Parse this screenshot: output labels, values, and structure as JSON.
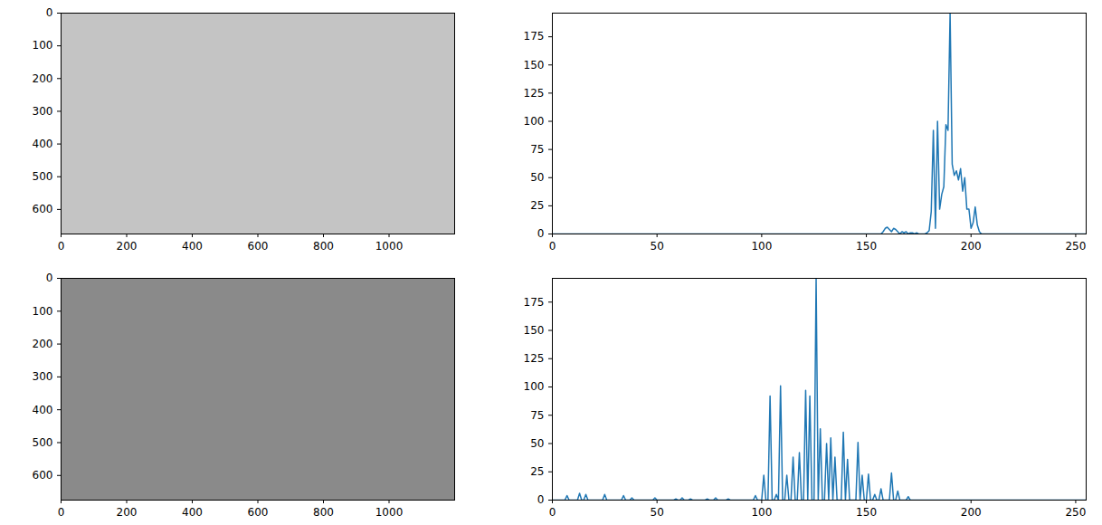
{
  "chart_data": [
    {
      "type": "image",
      "color": "#c4c4c4",
      "xlim": [
        0,
        1200
      ],
      "ylim": [
        0,
        675
      ],
      "xticks": [
        0,
        200,
        400,
        600,
        800,
        1000
      ],
      "yticks": [
        0,
        100,
        200,
        300,
        400,
        500,
        600
      ]
    },
    {
      "type": "line",
      "color": "#1f77b4",
      "x": [
        0,
        157,
        158,
        159,
        160,
        161,
        162,
        163,
        164,
        165,
        166,
        167,
        168,
        169,
        170,
        171,
        172,
        173,
        174,
        175,
        176,
        177,
        178,
        179,
        180,
        181,
        182,
        183,
        184,
        185,
        186,
        187,
        188,
        189,
        190,
        191,
        192,
        193,
        194,
        195,
        196,
        197,
        198,
        199,
        200,
        201,
        202,
        203,
        204,
        205,
        255
      ],
      "values": [
        0,
        0,
        2,
        5,
        6,
        4,
        2,
        5,
        4,
        2,
        0,
        2,
        1,
        2,
        0,
        1,
        1,
        0,
        1,
        0,
        0,
        0,
        0,
        1,
        3,
        20,
        92,
        5,
        100,
        22,
        35,
        42,
        97,
        92,
        196,
        62,
        52,
        56,
        48,
        58,
        38,
        50,
        22,
        22,
        5,
        10,
        24,
        8,
        2,
        0,
        0
      ],
      "xlim": [
        0,
        255
      ],
      "ylim": [
        0,
        196
      ],
      "xticks": [
        0,
        50,
        100,
        150,
        200,
        250
      ],
      "yticks": [
        0,
        25,
        50,
        75,
        100,
        125,
        150,
        175
      ]
    },
    {
      "type": "image",
      "color": "#8a8a8a",
      "xlim": [
        0,
        1200
      ],
      "ylim": [
        0,
        675
      ],
      "xticks": [
        0,
        200,
        400,
        600,
        800,
        1000
      ],
      "yticks": [
        0,
        100,
        200,
        300,
        400,
        500,
        600
      ]
    },
    {
      "type": "line",
      "color": "#1f77b4",
      "x": [
        0,
        6,
        7,
        8,
        12,
        13,
        14,
        15,
        16,
        17,
        24,
        25,
        26,
        33,
        34,
        35,
        37,
        38,
        39,
        48,
        49,
        50,
        58,
        59,
        60,
        61,
        62,
        63,
        65,
        66,
        67,
        73,
        74,
        75,
        77,
        78,
        79,
        83,
        84,
        85,
        96,
        97,
        98,
        100,
        101,
        102,
        103,
        104,
        105,
        106,
        107,
        108,
        109,
        110,
        111,
        112,
        113,
        114,
        115,
        116,
        117,
        118,
        119,
        120,
        121,
        122,
        123,
        124,
        125,
        126,
        127,
        128,
        129,
        130,
        131,
        132,
        133,
        134,
        135,
        136,
        138,
        139,
        140,
        141,
        142,
        145,
        146,
        147,
        148,
        149,
        150,
        151,
        152,
        153,
        154,
        155,
        156,
        157,
        158,
        161,
        162,
        163,
        164,
        165,
        166,
        169,
        170,
        171,
        255
      ],
      "values": [
        0,
        0,
        4,
        0,
        0,
        6,
        0,
        0,
        5,
        0,
        0,
        5,
        0,
        0,
        4,
        0,
        0,
        2,
        0,
        0,
        2,
        0,
        0,
        1,
        0,
        0,
        2,
        0,
        0,
        1,
        0,
        0,
        1,
        0,
        0,
        2,
        0,
        0,
        1,
        0,
        0,
        4,
        0,
        0,
        22,
        0,
        0,
        92,
        0,
        0,
        5,
        0,
        101,
        0,
        0,
        22,
        0,
        0,
        38,
        0,
        0,
        42,
        0,
        0,
        97,
        0,
        92,
        0,
        0,
        196,
        0,
        63,
        0,
        0,
        50,
        0,
        55,
        0,
        38,
        0,
        0,
        60,
        0,
        36,
        0,
        0,
        51,
        0,
        22,
        0,
        0,
        23,
        0,
        0,
        5,
        0,
        0,
        10,
        0,
        0,
        24,
        0,
        0,
        8,
        0,
        0,
        3,
        0,
        0
      ],
      "xlim": [
        0,
        255
      ],
      "ylim": [
        0,
        196
      ],
      "xticks": [
        0,
        50,
        100,
        150,
        200,
        250
      ],
      "yticks": [
        0,
        25,
        50,
        75,
        100,
        125,
        150,
        175
      ]
    }
  ]
}
